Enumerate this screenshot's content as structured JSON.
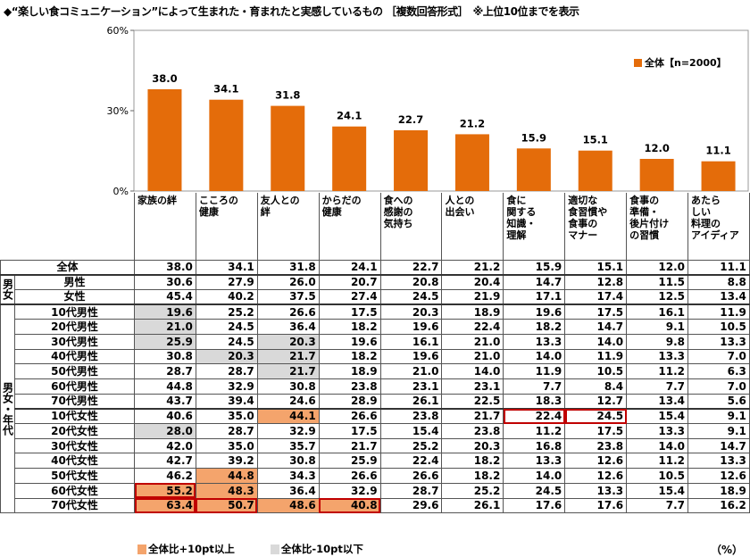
{
  "title": "◆“楽しい食コミュニケーション”によって生まれた・育まれたと実感しているもの ［複数回答形式］　※上位10位までを表示",
  "chart_data": {
    "type": "bar",
    "title": "“楽しい食コミュニケーション”によって生まれた・育まれたと実感しているもの",
    "categories": [
      "家族の絆",
      "こころの健康",
      "友人との絆",
      "からだの健康",
      "食への感謝の気持ち",
      "人との出会い",
      "食に関する知識・理解",
      "適切な食習慣や食事のマナー",
      "食事の準備・後片付けの習慣",
      "あたらしい料理のアイディア"
    ],
    "header_lines": [
      [
        "家族の絆"
      ],
      [
        "こころの",
        "健康"
      ],
      [
        "友人との",
        "絆"
      ],
      [
        "からだの",
        "健康"
      ],
      [
        "食への",
        "感謝の",
        "気持ち"
      ],
      [
        "人との",
        "出会い"
      ],
      [
        "食に",
        "関する",
        "知識・",
        "理解"
      ],
      [
        "適切な",
        "食習慣や",
        "食事の",
        "マナー"
      ],
      [
        "食事の",
        "準備・",
        "後片付け",
        "の習慣"
      ],
      [
        "あたら",
        "しい",
        "料理の",
        "アイディア"
      ]
    ],
    "series": [
      {
        "name": "全体【n=2000】",
        "values": [
          38.0,
          34.1,
          31.8,
          24.1,
          22.7,
          21.2,
          15.9,
          15.1,
          12.0,
          11.1
        ]
      }
    ],
    "yticks": [
      "60%",
      "30%",
      "0%"
    ],
    "ylim": [
      0,
      60
    ],
    "legend": "全体【n=2000】",
    "legend_position": "top-right",
    "bar_color": "#e46c0a"
  },
  "table": {
    "groups": {
      "gender": "男女",
      "gender_age": "男女・年代"
    },
    "rows": [
      {
        "label": "全体",
        "values": [
          "38.0",
          "34.1",
          "31.8",
          "24.1",
          "22.7",
          "21.2",
          "15.9",
          "15.1",
          "12.0",
          "11.1"
        ],
        "gray": [],
        "orange": [],
        "red": []
      },
      {
        "label": "男性",
        "values": [
          "30.6",
          "27.9",
          "26.0",
          "20.7",
          "20.8",
          "20.4",
          "14.7",
          "12.8",
          "11.5",
          "8.8"
        ],
        "gray": [],
        "orange": [],
        "red": []
      },
      {
        "label": "女性",
        "values": [
          "45.4",
          "40.2",
          "37.5",
          "27.4",
          "24.5",
          "21.9",
          "17.1",
          "17.4",
          "12.5",
          "13.4"
        ],
        "gray": [],
        "orange": [],
        "red": []
      },
      {
        "label": "10代男性",
        "values": [
          "19.6",
          "25.2",
          "26.6",
          "17.5",
          "20.3",
          "18.9",
          "19.6",
          "17.5",
          "16.1",
          "11.9"
        ],
        "gray": [
          0
        ],
        "orange": [],
        "red": []
      },
      {
        "label": "20代男性",
        "values": [
          "21.0",
          "24.5",
          "36.4",
          "18.2",
          "19.6",
          "22.4",
          "18.2",
          "14.7",
          "9.1",
          "10.5"
        ],
        "gray": [
          0
        ],
        "orange": [],
        "red": []
      },
      {
        "label": "30代男性",
        "values": [
          "25.9",
          "24.5",
          "20.3",
          "19.6",
          "16.1",
          "21.0",
          "13.3",
          "14.0",
          "9.8",
          "13.3"
        ],
        "gray": [
          0,
          2
        ],
        "orange": [],
        "red": []
      },
      {
        "label": "40代男性",
        "values": [
          "30.8",
          "20.3",
          "21.7",
          "18.2",
          "19.6",
          "21.0",
          "14.0",
          "11.9",
          "13.3",
          "7.0"
        ],
        "gray": [
          1,
          2
        ],
        "orange": [],
        "red": []
      },
      {
        "label": "50代男性",
        "values": [
          "28.7",
          "28.7",
          "21.7",
          "18.9",
          "21.0",
          "14.0",
          "11.9",
          "10.5",
          "11.2",
          "6.3"
        ],
        "gray": [
          2
        ],
        "orange": [],
        "red": []
      },
      {
        "label": "60代男性",
        "values": [
          "44.8",
          "32.9",
          "30.8",
          "23.8",
          "23.1",
          "23.1",
          "7.7",
          "8.4",
          "7.7",
          "7.0"
        ],
        "gray": [],
        "orange": [],
        "red": []
      },
      {
        "label": "70代男性",
        "values": [
          "43.7",
          "39.4",
          "24.6",
          "28.9",
          "26.1",
          "22.5",
          "18.3",
          "12.7",
          "13.4",
          "5.6"
        ],
        "gray": [],
        "orange": [],
        "red": []
      },
      {
        "label": "10代女性",
        "values": [
          "40.6",
          "35.0",
          "44.1",
          "26.6",
          "23.8",
          "21.7",
          "22.4",
          "24.5",
          "15.4",
          "9.1"
        ],
        "gray": [],
        "orange": [
          2
        ],
        "red": [
          6,
          7
        ]
      },
      {
        "label": "20代女性",
        "values": [
          "28.0",
          "28.7",
          "32.9",
          "17.5",
          "15.4",
          "23.8",
          "11.2",
          "17.5",
          "13.3",
          "9.1"
        ],
        "gray": [
          0
        ],
        "orange": [],
        "red": []
      },
      {
        "label": "30代女性",
        "values": [
          "42.0",
          "35.0",
          "35.7",
          "21.7",
          "25.2",
          "20.3",
          "16.8",
          "23.8",
          "14.0",
          "14.7"
        ],
        "gray": [],
        "orange": [],
        "red": []
      },
      {
        "label": "40代女性",
        "values": [
          "42.7",
          "39.2",
          "30.8",
          "25.9",
          "22.4",
          "18.2",
          "13.3",
          "12.6",
          "11.2",
          "13.3"
        ],
        "gray": [],
        "orange": [],
        "red": []
      },
      {
        "label": "50代女性",
        "values": [
          "46.2",
          "44.8",
          "34.3",
          "26.6",
          "26.6",
          "18.2",
          "14.0",
          "12.6",
          "10.5",
          "12.6"
        ],
        "gray": [],
        "orange": [
          1
        ],
        "red": []
      },
      {
        "label": "60代女性",
        "values": [
          "55.2",
          "48.3",
          "36.4",
          "32.9",
          "28.7",
          "25.2",
          "24.5",
          "13.3",
          "15.4",
          "18.9"
        ],
        "gray": [],
        "orange": [
          0,
          1
        ],
        "red": [
          0
        ]
      },
      {
        "label": "70代女性",
        "values": [
          "63.4",
          "50.7",
          "48.6",
          "40.8",
          "29.6",
          "26.1",
          "17.6",
          "17.6",
          "7.7",
          "16.2"
        ],
        "gray": [],
        "orange": [
          0,
          1,
          2,
          3
        ],
        "red": [
          0,
          1,
          3
        ]
      }
    ]
  },
  "legend_bottom": {
    "plus": "全体比+10pt以上",
    "minus": "全体比-10pt以下",
    "plus_color": "#f4a46c",
    "minus_color": "#d9d9d9"
  },
  "unit": "（%）"
}
